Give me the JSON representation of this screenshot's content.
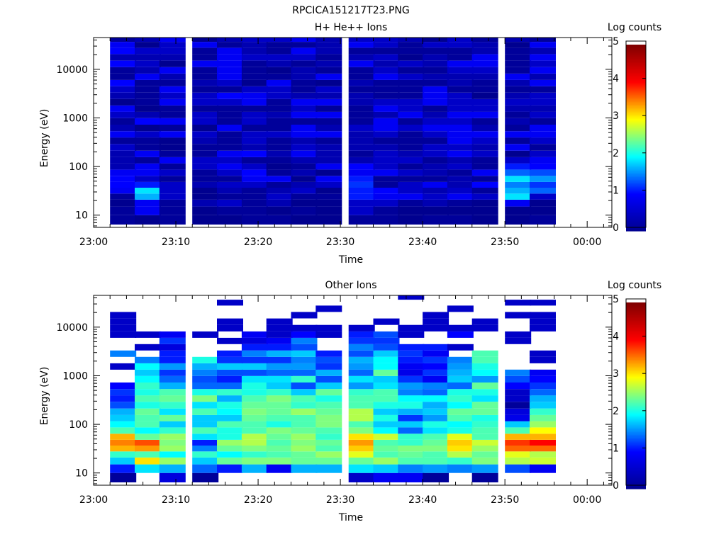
{
  "title": "RPCICA151217T23.PNG",
  "colormap": [
    "#00008f",
    "#0000ff",
    "#00ffff",
    "#ffff00",
    "#ff0000",
    "#800000"
  ],
  "chart_data": [
    {
      "type": "heatmap",
      "title": "H+ He++ Ions",
      "xlabel": "Time",
      "ylabel": "Energy (eV)",
      "yscale": "log",
      "ylim": [
        5.6,
        45000
      ],
      "xlim": [
        "23:00",
        "00:03"
      ],
      "x_ticks": [
        "23:00",
        "23:10",
        "23:20",
        "23:30",
        "23:40",
        "23:50",
        "00:00"
      ],
      "y_ticks": [
        10,
        100,
        1000,
        10000
      ],
      "y_tick_labels": [
        "10",
        "100",
        "1000",
        "10000"
      ],
      "colorbar": {
        "label": "Log counts",
        "range": [
          0,
          5
        ],
        "ticks": [
          "0",
          "1",
          "2",
          "3",
          "4",
          "5"
        ]
      },
      "x_bins_start": [
        "23:02",
        "23:05",
        "23:08",
        "23:12",
        "23:15",
        "23:18",
        "23:21",
        "23:24",
        "23:27",
        "23:31",
        "23:34",
        "23:37",
        "23:40",
        "23:43",
        "23:46",
        "23:50",
        "23:53"
      ],
      "e_bins_eV": [
        8.0,
        12.5,
        18.0,
        24.0,
        32.0,
        42.0,
        55.0,
        75.0,
        100.0,
        135.0,
        180.0,
        250.0,
        340.0,
        460.0,
        620.0,
        850.0,
        1150.0,
        1550.0,
        2100.0,
        2850.0,
        3850.0,
        5200.0,
        7000.0,
        9500.0,
        13000.0,
        17500.0,
        24000.0,
        32000.0,
        42000.0
      ],
      "log_counts": [
        [
          0.1,
          0.1,
          0,
          0.1,
          0.9,
          1.0,
          1.0,
          0.9,
          0.3,
          0.3,
          0.3,
          0.5,
          0.1,
          0.9,
          0.3,
          0.1,
          0.5,
          0.9,
          0,
          0.3,
          0.5,
          1.0,
          0.1,
          0.1,
          1.0,
          0.3,
          1.0,
          0.9,
          0.1
        ],
        [
          0,
          0.9,
          0.9,
          1.7,
          1.9,
          1.1,
          0.5,
          0.9,
          0.9,
          0.1,
          0.9,
          0.1,
          0.1,
          0.5,
          0,
          1.0,
          0.3,
          0,
          0.1,
          0.1,
          0.1,
          0.1,
          0.9,
          0.3,
          0.5,
          0.3,
          0.5,
          0,
          0.3
        ],
        [
          0.1,
          0.1,
          0.1,
          0.5,
          0.5,
          0.5,
          0.1,
          0.5,
          0.1,
          0.9,
          0.1,
          0,
          0,
          0.9,
          0.1,
          0.9,
          0.1,
          0.1,
          0.9,
          0.5,
          0.9,
          0.1,
          0.3,
          0.9,
          0,
          0.3,
          0.5,
          0.5,
          0.9
        ],
        [
          0,
          0,
          0.3,
          0,
          0,
          0.3,
          0.1,
          0.1,
          0.5,
          0.5,
          0.1,
          0.1,
          0.3,
          0.5,
          0,
          0.5,
          0.5,
          0.1,
          0.5,
          0.5,
          0.1,
          0.3,
          0.1,
          0.1,
          0.9,
          0.1,
          0.1,
          0.9,
          0
        ],
        [
          0,
          0.1,
          0.5,
          0.1,
          0.3,
          0.5,
          0.1,
          0.5,
          0.9,
          0.5,
          0.9,
          0.1,
          0.1,
          0.1,
          0.9,
          0.1,
          0.1,
          0.1,
          0.5,
          1.0,
          0.1,
          0.5,
          0.9,
          0.9,
          0.9,
          0.9,
          0.9,
          0.1,
          0.3
        ],
        [
          0.1,
          0.1,
          0.1,
          0.1,
          0.1,
          0.5,
          0.9,
          1.0,
          0.5,
          0.1,
          1.0,
          0.3,
          0.5,
          0.5,
          0.1,
          0.5,
          0.5,
          0.1,
          0.9,
          0.9,
          0.5,
          0,
          0.1,
          0.1,
          0.1,
          0.5,
          0.3,
          0.3,
          0.5
        ],
        [
          0.1,
          0,
          0.3,
          0.5,
          0.3,
          0.1,
          0.9,
          0.1,
          0,
          0.1,
          0.3,
          0.1,
          0.1,
          0.5,
          0.1,
          0.1,
          0.3,
          0.1,
          0.1,
          0.5,
          0.5,
          0.9,
          0.1,
          0,
          0.3,
          0.5,
          0.1,
          0.1,
          0.5
        ],
        [
          0,
          0.1,
          0,
          0.1,
          0.5,
          0.3,
          0,
          0.3,
          0.1,
          0.3,
          0.9,
          0.5,
          0.3,
          0.9,
          0.9,
          0.1,
          0.9,
          0.5,
          0.9,
          0.3,
          0.1,
          0.1,
          0.3,
          0.3,
          0.1,
          0.5,
          0.9,
          0.1,
          0.9
        ],
        [
          0,
          0,
          0,
          0.1,
          0,
          0.5,
          0.9,
          0,
          0.9,
          0.3,
          0.3,
          0.3,
          0.1,
          0.9,
          0.3,
          0.1,
          0.9,
          0.1,
          0.9,
          0.3,
          0.5,
          0,
          0.9,
          0.1,
          0.3,
          0.1,
          0.3,
          0.3,
          0.3
        ],
        [
          0.1,
          0.5,
          0.5,
          1.1,
          1.1,
          1.2,
          1.1,
          0.9,
          1.0,
          0.3,
          0.1,
          0.3,
          0.3,
          0.3,
          0.5,
          0.1,
          0.1,
          0.1,
          0.3,
          0.3,
          0.1,
          0.3,
          0.1,
          0.1,
          0.9,
          0.3,
          0.1,
          0.9,
          0.5
        ],
        [
          0.1,
          0.1,
          0.5,
          0.9,
          1.0,
          0.1,
          0.1,
          0.9,
          0.5,
          0.5,
          0.5,
          0.3,
          0.1,
          0.5,
          0.9,
          0.9,
          0.3,
          0.9,
          0.5,
          0.1,
          0.1,
          0.1,
          0.9,
          0.5,
          0.3,
          0.5,
          0.1,
          0.5,
          0.5
        ],
        [
          0,
          0,
          0.1,
          0.9,
          0.5,
          0.5,
          0.1,
          0.5,
          0.1,
          0.5,
          0.3,
          0.1,
          0.1,
          0.1,
          0.5,
          0.1,
          0.9,
          0.5,
          0.5,
          0.1,
          0.1,
          0.1,
          0.5,
          0.1,
          0.5,
          0,
          0.1,
          0.1,
          0.3
        ],
        [
          0.1,
          0,
          0.3,
          0.5,
          0.3,
          0.9,
          0.1,
          0.3,
          0.3,
          0.1,
          0.5,
          0.5,
          0.1,
          0.5,
          0.9,
          0.5,
          0.3,
          0.1,
          0.9,
          0.9,
          0.9,
          0.1,
          0.3,
          0.1,
          0.3,
          0.3,
          0.1,
          0.5,
          0
        ],
        [
          0.1,
          0,
          0.1,
          0.9,
          0.5,
          0.3,
          0.3,
          0.1,
          0.5,
          0.3,
          0.9,
          0.5,
          0.9,
          0.9,
          0.9,
          0.5,
          0.9,
          0.5,
          0.5,
          0.5,
          0.1,
          0.3,
          0.3,
          0.5,
          0.9,
          0.1,
          0.1,
          0.5,
          0.5
        ],
        [
          0,
          0,
          0,
          0.5,
          0.1,
          1.0,
          0.1,
          0.9,
          0.1,
          0.1,
          0.5,
          0.3,
          0.5,
          0.9,
          0.3,
          0.1,
          0.9,
          0.5,
          0.5,
          0,
          0.1,
          0.1,
          0.3,
          0.5,
          0.9,
          0.9,
          0.3,
          0.3,
          0.1
        ],
        [
          0,
          0,
          0.9,
          1.9,
          1.7,
          1.5,
          1.9,
          1.4,
          1.1,
          0.5,
          0,
          0.9,
          0.1,
          0.9,
          0.1,
          0.3,
          0.1,
          0.3,
          0.5,
          0.3,
          0.1,
          0.3,
          0.9,
          0.1,
          0.1,
          0.1,
          0.1,
          0,
          0.3
        ],
        [
          0.1,
          0,
          0,
          0.5,
          1.4,
          1.2,
          1.6,
          1.3,
          1.0,
          0.9,
          0.5,
          0.1,
          0.5,
          0.9,
          0.9,
          0.1,
          0.5,
          0.3,
          0.5,
          0.5,
          0.1,
          0.9,
          0.3,
          0.9,
          0.5,
          0.9,
          0.3,
          0.9,
          0.1
        ]
      ]
    },
    {
      "type": "heatmap",
      "title": "Other Ions",
      "xlabel": "Time",
      "ylabel": "Energy (eV)",
      "yscale": "log",
      "ylim": [
        5.6,
        45000
      ],
      "xlim": [
        "23:00",
        "00:03"
      ],
      "x_ticks": [
        "23:00",
        "23:10",
        "23:20",
        "23:30",
        "23:40",
        "23:50",
        "00:00"
      ],
      "y_ticks": [
        10,
        100,
        1000,
        10000
      ],
      "y_tick_labels": [
        "10",
        "100",
        "1000",
        "10000"
      ],
      "colorbar": {
        "label": "Log counts",
        "range": [
          0,
          5
        ],
        "ticks": [
          "0",
          "1",
          "2",
          "3",
          "4",
          "5"
        ]
      },
      "x_bins_start": [
        "23:02",
        "23:05",
        "23:08",
        "23:12",
        "23:15",
        "23:18",
        "23:21",
        "23:24",
        "23:27",
        "23:31",
        "23:34",
        "23:37",
        "23:40",
        "23:43",
        "23:46",
        "23:50",
        "23:53"
      ],
      "e_bins_eV": [
        8.0,
        12.5,
        18.0,
        24.0,
        32.0,
        42.0,
        55.0,
        75.0,
        100.0,
        135.0,
        180.0,
        250.0,
        340.0,
        460.0,
        620.0,
        850.0,
        1150.0,
        1550.0,
        2100.0,
        2850.0,
        3850.0,
        5200.0,
        7000.0,
        9500.0,
        13000.0,
        17500.0,
        24000.0,
        32000.0,
        42000.0
      ],
      "log_counts": [
        [
          0.1,
          1.1,
          1.8,
          2.2,
          3.3,
          3.5,
          3.3,
          2.3,
          2.0,
          1.8,
          1.7,
          1.3,
          1.1,
          1.2,
          1.0,
          -1,
          -1,
          0.5,
          -1,
          1.5,
          -1,
          -1,
          0.5,
          0.5,
          0.5,
          0.5,
          -1,
          -1,
          -1
        ],
        [
          -1,
          1.9,
          3.1,
          2.3,
          3.4,
          3.7,
          2.4,
          2.0,
          2.3,
          2.3,
          2.4,
          2.1,
          2.3,
          2.1,
          2.2,
          2.0,
          1.8,
          2.0,
          1.5,
          -1,
          0.5,
          -1,
          0.5,
          -1,
          -1,
          -1,
          -1,
          -1,
          -1
        ],
        [
          0.7,
          1.7,
          2.6,
          2.0,
          2.6,
          2.5,
          2.6,
          2.2,
          1.8,
          2.4,
          1.9,
          2.2,
          2.4,
          2.3,
          1.7,
          1.4,
          1.2,
          1.6,
          1.1,
          1.1,
          0.7,
          1.2,
          0.9,
          -1,
          -1,
          -1,
          -1,
          -1,
          -1
        ],
        [
          0.1,
          1.4,
          1.8,
          2.2,
          1.5,
          1.1,
          1.9,
          2.3,
          1.8,
          1.8,
          2.3,
          1.9,
          2.5,
          2.1,
          1.4,
          1.3,
          1.5,
          1.7,
          2.1,
          -1,
          -1,
          -1,
          0.5,
          -1,
          -1,
          -1,
          -1,
          -1,
          -1
        ],
        [
          -1,
          1.1,
          2.4,
          2.0,
          2.4,
          2.6,
          2.1,
          2.1,
          2.3,
          1.8,
          2.0,
          2.1,
          1.7,
          2.2,
          1.4,
          1.1,
          1.3,
          1.8,
          1.2,
          1.1,
          -1,
          0.5,
          -1,
          0.5,
          0.5,
          -1,
          -1,
          0.5,
          -1
        ],
        [
          -1,
          1.7,
          2.5,
          2.2,
          2.5,
          2.7,
          2.7,
          2.3,
          2.3,
          2.4,
          2.5,
          2.4,
          2.3,
          2.1,
          2.1,
          1.9,
          1.3,
          1.8,
          1.2,
          1.5,
          1.1,
          0.7,
          0.9,
          -1,
          -1,
          -1,
          -1,
          -1,
          -1
        ],
        [
          -1,
          0.9,
          2.5,
          2.3,
          2.4,
          2.3,
          2.4,
          2.5,
          2.1,
          2.3,
          2.4,
          2.4,
          2.5,
          2.2,
          1.8,
          1.9,
          1.4,
          1.6,
          1.2,
          1.7,
          1.1,
          0.9,
          0.5,
          0.5,
          0.5,
          -1,
          -1,
          -1,
          -1
        ],
        [
          -1,
          1.7,
          2.4,
          2.4,
          2.6,
          2.5,
          2.6,
          2.4,
          2.3,
          2.3,
          2.6,
          2.2,
          2.3,
          1.8,
          1.3,
          2.2,
          1.4,
          1.6,
          1.5,
          1.8,
          1.3,
          1.5,
          1.0,
          0.5,
          -1,
          0.5,
          -1,
          -1,
          -1
        ],
        [
          -1,
          1.7,
          2.4,
          2.6,
          2.3,
          2.4,
          2.2,
          2.3,
          2.5,
          2.5,
          2.4,
          2.3,
          2.1,
          2.4,
          1.8,
          1.3,
          1.7,
          1.2,
          1.3,
          1.1,
          -1,
          -1,
          0.5,
          0.5,
          -1,
          -1,
          0.5,
          -1,
          -1
        ],
        [
          0.5,
          1.9,
          2.4,
          2.9,
          3.2,
          3.4,
          3.1,
          2.5,
          2.3,
          2.7,
          2.7,
          2.3,
          2.3,
          2.2,
          1.6,
          1.9,
          1.4,
          1.6,
          1.7,
          1.3,
          1.5,
          1.2,
          1.1,
          0.5,
          -1,
          -1,
          -1,
          -1,
          -1
        ],
        [
          0.9,
          1.8,
          2.6,
          2.3,
          2.4,
          2.3,
          2.8,
          2.0,
          1.8,
          2.1,
          1.8,
          2.1,
          2.3,
          2.3,
          1.9,
          1.8,
          2.4,
          2.0,
          2.0,
          1.8,
          1.3,
          1.2,
          1.3,
          -1,
          0.5,
          -1,
          -1,
          -1,
          -1
        ],
        [
          0.9,
          1.5,
          2.3,
          2.4,
          2.5,
          2.2,
          2.2,
          1.4,
          1.8,
          1.2,
          1.7,
          2.1,
          2.0,
          1.5,
          1.6,
          1.2,
          0.8,
          0.9,
          1.1,
          1.2,
          1.1,
          -1,
          0.5,
          0.5,
          -1,
          -1,
          -1,
          -1,
          0.5
        ],
        [
          0.1,
          1.6,
          2.3,
          2.3,
          2.5,
          2.4,
          2.3,
          1.9,
          2.1,
          1.6,
          1.8,
          1.7,
          2.0,
          1.4,
          1.5,
          0.9,
          1.2,
          1.0,
          1.2,
          0.9,
          1.1,
          -1,
          -1,
          0.5,
          0.5,
          0.5,
          -1,
          -1,
          -1
        ],
        [
          -1,
          1.5,
          2.2,
          2.7,
          3.1,
          3.2,
          2.9,
          2.1,
          2.0,
          2.3,
          2.4,
          2.0,
          2.2,
          2.1,
          1.4,
          1.8,
          1.7,
          1.6,
          1.5,
          -1,
          0.5,
          -1,
          1.0,
          0.5,
          -1,
          -1,
          0.5,
          -1,
          -1
        ],
        [
          0.1,
          1.6,
          2.5,
          2.4,
          2.6,
          2.8,
          2.3,
          2.3,
          2.2,
          2.1,
          2.4,
          2.4,
          1.9,
          2.1,
          2.4,
          1.6,
          2.0,
          2.1,
          2.3,
          2.3,
          -1,
          -1,
          -1,
          0.5,
          0.5,
          -1,
          -1,
          -1,
          -1
        ],
        [
          -1,
          1.3,
          2.7,
          2.9,
          3.6,
          3.8,
          3.3,
          2.3,
          1.8,
          0.8,
          0.7,
          0.1,
          0.5,
          0.5,
          1.0,
          1.3,
          1.5,
          -1,
          -1,
          -1,
          -1,
          0.5,
          0.5,
          -1,
          -1,
          0.5,
          -1,
          0.5,
          -1
        ],
        [
          -1,
          0.9,
          2.8,
          2.7,
          3.6,
          4.0,
          3.3,
          3.0,
          2.6,
          2.4,
          2.2,
          1.8,
          1.7,
          1.4,
          1.2,
          1.0,
          0.9,
          -1,
          0.5,
          0.5,
          -1,
          -1,
          -1,
          0.5,
          0.5,
          0.5,
          -1,
          0.5,
          -1
        ]
      ]
    }
  ]
}
